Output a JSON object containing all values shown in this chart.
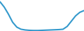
{
  "x": [
    0,
    1,
    2,
    3,
    4,
    5,
    6,
    7,
    8,
    9,
    10,
    11,
    12,
    13,
    14,
    15,
    16,
    17,
    18,
    19,
    20
  ],
  "y": [
    10000000,
    8500000,
    6500000,
    4200000,
    2800000,
    2200000,
    2000000,
    1900000,
    1850000,
    1850000,
    1900000,
    1950000,
    2000000,
    2050000,
    2100000,
    2200000,
    3000000,
    4500000,
    6000000,
    7000000,
    7500000
  ],
  "ylim_min": 1700000,
  "ylim_max": 10500000,
  "line_color": "#3399cc",
  "background_color": "#ffffff",
  "linewidth": 1.5
}
